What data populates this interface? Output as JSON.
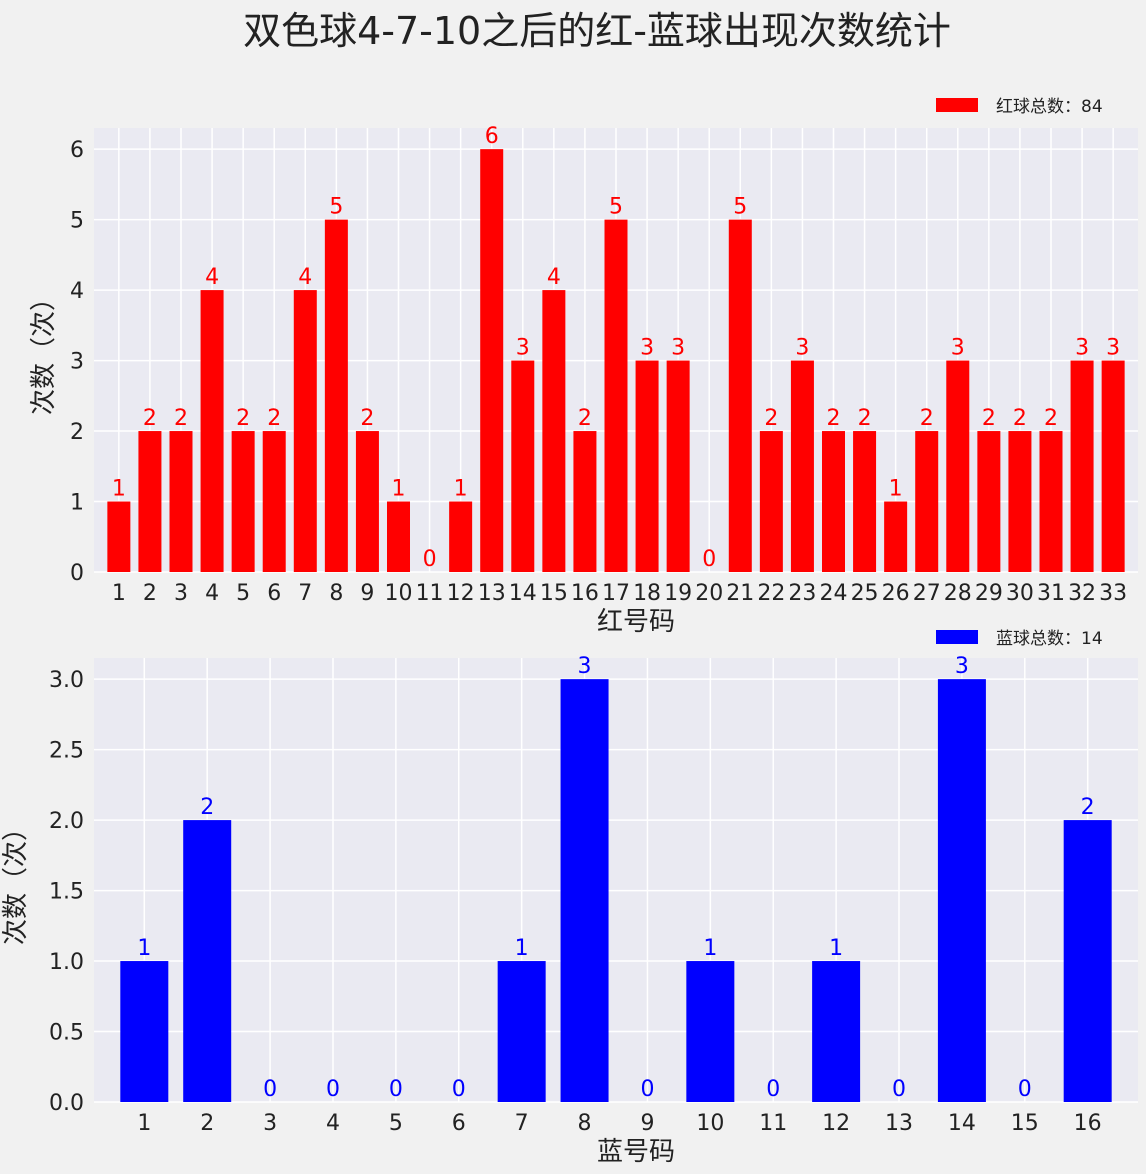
{
  "title": "双色球4-7-10之后的红-蓝球出现次数统计",
  "chart_data": [
    {
      "type": "bar",
      "color": "#ff0000",
      "legend": "红球总数：84",
      "legend_position": "top-right",
      "xlabel": "红号码",
      "ylabel": "次数（次）",
      "ylim": [
        0,
        6.3
      ],
      "yticks": [
        "0",
        "1",
        "2",
        "3",
        "4",
        "5",
        "6"
      ],
      "grid": true,
      "categories": [
        "1",
        "2",
        "3",
        "4",
        "5",
        "6",
        "7",
        "8",
        "9",
        "10",
        "11",
        "12",
        "13",
        "14",
        "15",
        "16",
        "17",
        "18",
        "19",
        "20",
        "21",
        "22",
        "23",
        "24",
        "25",
        "26",
        "27",
        "28",
        "29",
        "30",
        "31",
        "32",
        "33"
      ],
      "values": [
        1,
        2,
        2,
        4,
        2,
        2,
        4,
        5,
        2,
        1,
        0,
        1,
        6,
        3,
        4,
        2,
        5,
        3,
        3,
        0,
        5,
        2,
        3,
        2,
        2,
        1,
        2,
        3,
        2,
        2,
        2,
        3,
        3
      ]
    },
    {
      "type": "bar",
      "color": "#0000ff",
      "legend": "蓝球总数：14",
      "legend_position": "top-right",
      "xlabel": "蓝号码",
      "ylabel": "次数（次）",
      "ylim": [
        0,
        3.15
      ],
      "yticks": [
        "0.0",
        "0.5",
        "1.0",
        "1.5",
        "2.0",
        "2.5",
        "3.0"
      ],
      "grid": true,
      "categories": [
        "1",
        "2",
        "3",
        "4",
        "5",
        "6",
        "7",
        "8",
        "9",
        "10",
        "11",
        "12",
        "13",
        "14",
        "15",
        "16"
      ],
      "values": [
        1,
        2,
        0,
        0,
        0,
        0,
        1,
        3,
        0,
        1,
        0,
        1,
        0,
        3,
        0,
        2
      ]
    }
  ]
}
